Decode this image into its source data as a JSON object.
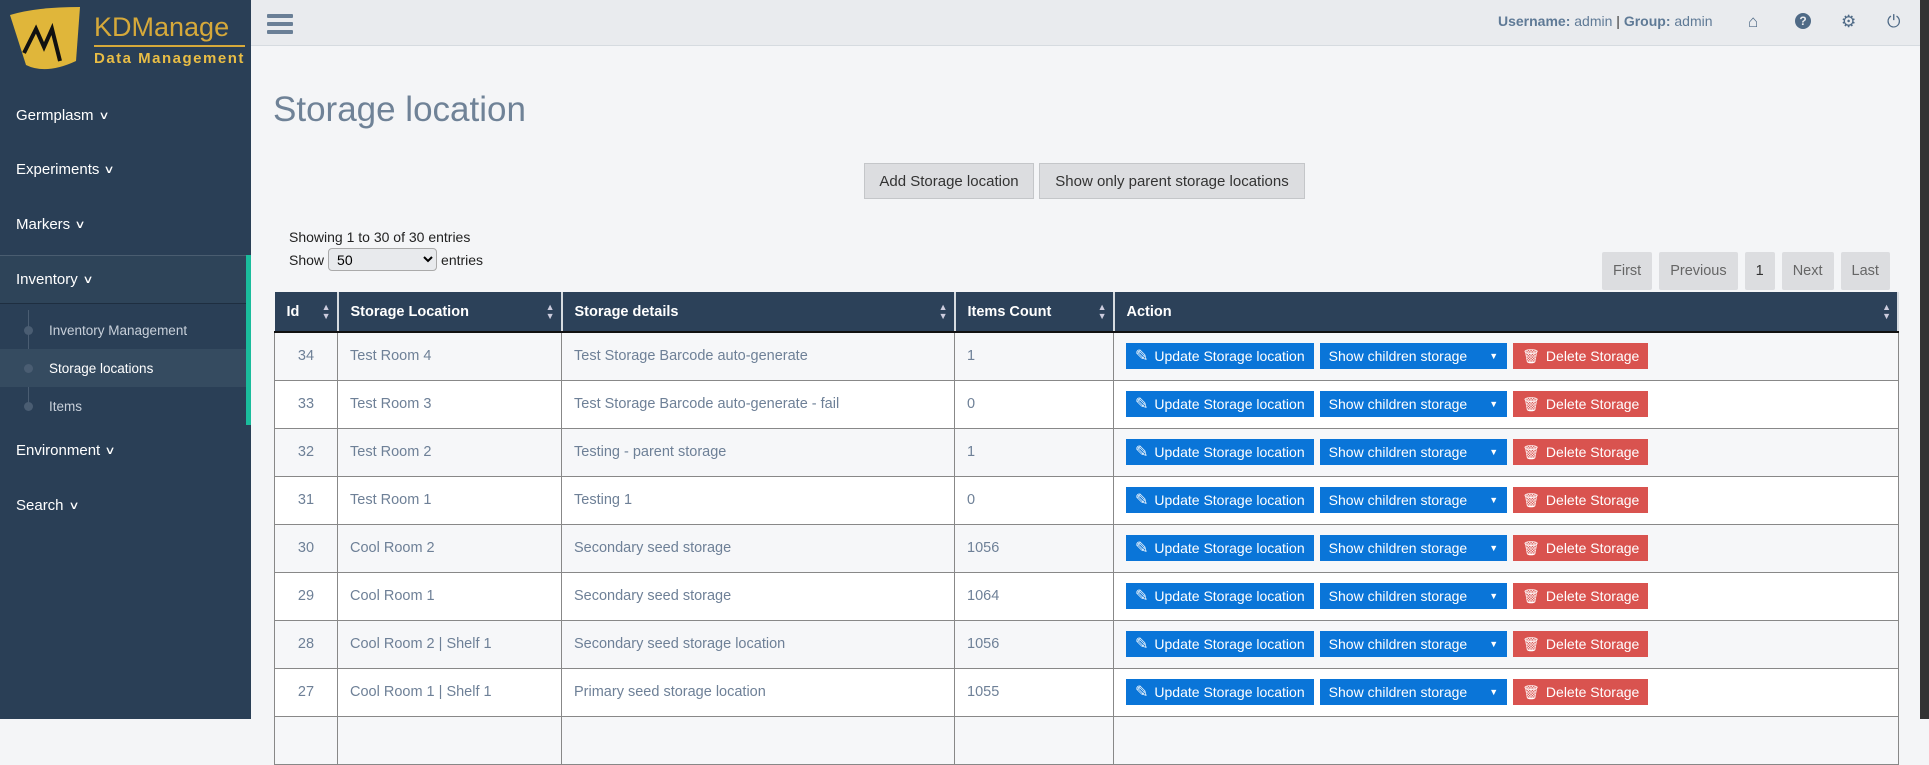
{
  "brand": {
    "name": "KDManage",
    "tagline": "Data Management"
  },
  "sidebar": {
    "items": [
      {
        "label": "Germplasm"
      },
      {
        "label": "Experiments"
      },
      {
        "label": "Markers"
      },
      {
        "label": "Inventory"
      },
      {
        "label": "Environment"
      },
      {
        "label": "Search"
      }
    ],
    "inventory_sub": [
      {
        "label": "Inventory Management"
      },
      {
        "label": "Storage locations",
        "active": true
      },
      {
        "label": "Items"
      }
    ]
  },
  "header": {
    "username_label": "Username:",
    "username": "admin",
    "sep": "|",
    "group_label": "Group:",
    "group": "admin",
    "icons": [
      "home-icon",
      "help-icon",
      "gear-icon",
      "power-icon"
    ]
  },
  "page": {
    "title": "Storage location",
    "add_button": "Add Storage location",
    "parent_button": "Show only parent storage locations",
    "showing": "Showing 1 to 30 of 30 entries",
    "show_label": "Show",
    "show_value": "50",
    "entries_label": "entries"
  },
  "pagination": {
    "first": "First",
    "previous": "Previous",
    "current": "1",
    "next": "Next",
    "last": "Last"
  },
  "table": {
    "columns": [
      "Id",
      "Storage Location",
      "Storage details",
      "Items Count",
      "Action"
    ],
    "actions": {
      "update": "Update Storage location",
      "children": "Show children storage",
      "delete": "Delete Storage"
    },
    "rows": [
      {
        "id": "34",
        "location": "Test Room 4",
        "details": "Test Storage Barcode auto-generate",
        "count": "1"
      },
      {
        "id": "33",
        "location": "Test Room 3",
        "details": "Test Storage Barcode auto-generate - fail",
        "count": "0"
      },
      {
        "id": "32",
        "location": "Test Room 2",
        "details": "Testing - parent storage",
        "count": "1"
      },
      {
        "id": "31",
        "location": "Test Room 1",
        "details": "Testing 1",
        "count": "0"
      },
      {
        "id": "30",
        "location": "Cool Room 2",
        "details": "Secondary seed storage",
        "count": "1056"
      },
      {
        "id": "29",
        "location": "Cool Room 1",
        "details": "Secondary seed storage",
        "count": "1064"
      },
      {
        "id": "28",
        "location": "Cool Room 2 | Shelf 1",
        "details": "Secondary seed storage location",
        "count": "1056"
      },
      {
        "id": "27",
        "location": "Cool Room 1 | Shelf 1",
        "details": "Primary seed storage location",
        "count": "1055"
      }
    ]
  },
  "colors": {
    "sidebar": "#2a3f56",
    "accent": "#1abc9c",
    "primary": "#0a75d8",
    "danger": "#d9534f",
    "logo": "#e0b63a"
  }
}
